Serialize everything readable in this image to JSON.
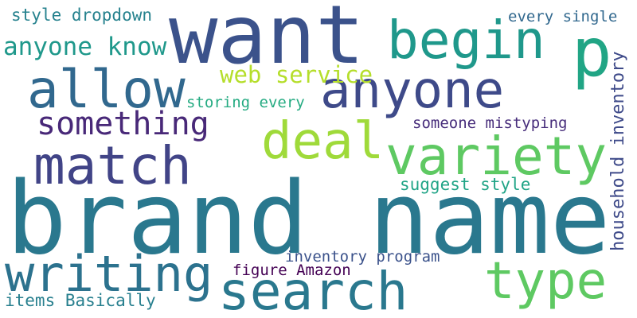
{
  "words": {
    "brand_name": {
      "text": "brand name",
      "color": "#2a788e"
    },
    "want": {
      "text": "want",
      "color": "#3b528b"
    },
    "p": {
      "text": "p",
      "color": "#21a585"
    },
    "begin": {
      "text": "begin",
      "color": "#1f988b"
    },
    "allow": {
      "text": "allow",
      "color": "#31688e"
    },
    "anyone": {
      "text": "anyone",
      "color": "#3e4a89"
    },
    "deal": {
      "text": "deal",
      "color": "#9fda3a"
    },
    "variety": {
      "text": "variety",
      "color": "#5ec962"
    },
    "match": {
      "text": "match",
      "color": "#414487"
    },
    "something": {
      "text": "something",
      "color": "#482878"
    },
    "writing": {
      "text": "writing",
      "color": "#2c728e"
    },
    "search": {
      "text": "search",
      "color": "#2a788e"
    },
    "type": {
      "text": "type",
      "color": "#5ec962"
    },
    "web_service": {
      "text": "web service",
      "color": "#b5de2b"
    },
    "anyone_know": {
      "text": "anyone know",
      "color": "#1f988b"
    },
    "style_dropdown": {
      "text": "style dropdown",
      "color": "#26828e"
    },
    "every_single": {
      "text": "every single",
      "color": "#31688e"
    },
    "storing_every": {
      "text": "storing every",
      "color": "#25ab82"
    },
    "someone_mistyping": {
      "text": "someone mistyping",
      "color": "#472d7b"
    },
    "household_inventory": {
      "text": "household inventory",
      "color": "#3e4a89"
    },
    "suggest_style": {
      "text": "suggest style",
      "color": "#20a486"
    },
    "inventory_program": {
      "text": "inventory program",
      "color": "#3b528b"
    },
    "figure_amazon": {
      "text": "figure Amazon",
      "color": "#440154"
    },
    "items_basically": {
      "text": "items Basically",
      "color": "#277f8e"
    }
  }
}
